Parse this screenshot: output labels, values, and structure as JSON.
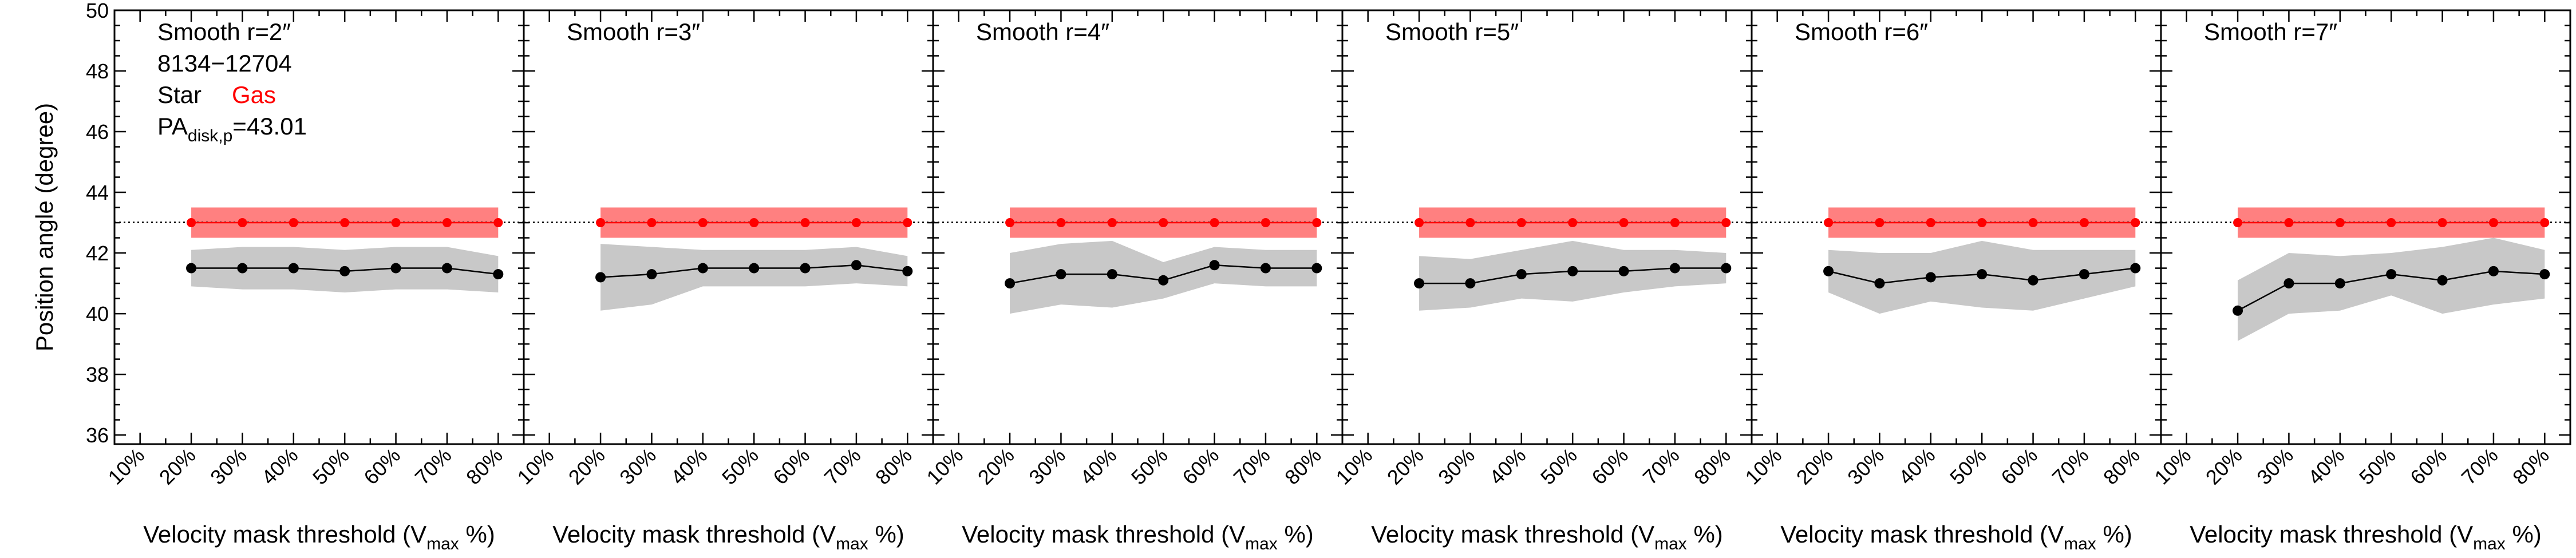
{
  "chart_data": {
    "type": "line",
    "ylabel": "Position angle (degree)",
    "xlabel_prefix": "Velocity mask threshold (V",
    "xlabel_sub": "max",
    "xlabel_suffix": " %)",
    "ylim": [
      35.7,
      50
    ],
    "yticks": [
      36,
      38,
      40,
      42,
      44,
      46,
      48,
      50
    ],
    "x_categories": [
      "10%",
      "20%",
      "30%",
      "40%",
      "50%",
      "60%",
      "70%",
      "80%"
    ],
    "xlim": [
      5,
      85
    ],
    "reference_line": 43.01,
    "colors": {
      "star": "#000000",
      "gas": "#ff0000",
      "gas_band": "#ff8080",
      "star_band": "#c8c8c8"
    },
    "legend": {
      "galaxy_id": "8134−12704",
      "star_label": "Star",
      "gas_label": "Gas",
      "pa_prefix": "PA",
      "pa_sub": "disk,p",
      "pa_value": "=43.01"
    },
    "panels": [
      {
        "title": "Smooth r=2″",
        "x": [
          20,
          30,
          40,
          50,
          60,
          70,
          80
        ],
        "gas": [
          43.0,
          43.0,
          43.0,
          43.0,
          43.0,
          43.0,
          43.0
        ],
        "gas_band": [
          [
            42.5,
            43.5
          ],
          [
            42.5,
            43.5
          ],
          [
            42.5,
            43.5
          ],
          [
            42.5,
            43.5
          ],
          [
            42.5,
            43.5
          ],
          [
            42.5,
            43.5
          ],
          [
            42.5,
            43.5
          ]
        ],
        "star": [
          41.5,
          41.5,
          41.5,
          41.4,
          41.5,
          41.5,
          41.3
        ],
        "star_band": [
          [
            40.9,
            42.1
          ],
          [
            40.8,
            42.2
          ],
          [
            40.8,
            42.2
          ],
          [
            40.7,
            42.1
          ],
          [
            40.8,
            42.2
          ],
          [
            40.8,
            42.2
          ],
          [
            40.7,
            41.9
          ]
        ]
      },
      {
        "title": "Smooth r=3″",
        "x": [
          20,
          30,
          40,
          50,
          60,
          70,
          80
        ],
        "gas": [
          43.0,
          43.0,
          43.0,
          43.0,
          43.0,
          43.0,
          43.0
        ],
        "gas_band": [
          [
            42.5,
            43.5
          ],
          [
            42.5,
            43.5
          ],
          [
            42.5,
            43.5
          ],
          [
            42.5,
            43.5
          ],
          [
            42.5,
            43.5
          ],
          [
            42.5,
            43.5
          ],
          [
            42.5,
            43.5
          ]
        ],
        "star": [
          41.2,
          41.3,
          41.5,
          41.5,
          41.5,
          41.6,
          41.4
        ],
        "star_band": [
          [
            40.1,
            42.3
          ],
          [
            40.3,
            42.2
          ],
          [
            40.9,
            42.1
          ],
          [
            40.9,
            42.1
          ],
          [
            40.9,
            42.1
          ],
          [
            41.0,
            42.2
          ],
          [
            40.9,
            41.9
          ]
        ]
      },
      {
        "title": "Smooth r=4″",
        "x": [
          20,
          30,
          40,
          50,
          60,
          70,
          80
        ],
        "gas": [
          43.0,
          43.0,
          43.0,
          43.0,
          43.0,
          43.0,
          43.0
        ],
        "gas_band": [
          [
            42.5,
            43.5
          ],
          [
            42.5,
            43.5
          ],
          [
            42.5,
            43.5
          ],
          [
            42.5,
            43.5
          ],
          [
            42.5,
            43.5
          ],
          [
            42.5,
            43.5
          ],
          [
            42.5,
            43.5
          ]
        ],
        "star": [
          41.0,
          41.3,
          41.3,
          41.1,
          41.6,
          41.5,
          41.5
        ],
        "star_band": [
          [
            40.0,
            42.0
          ],
          [
            40.3,
            42.3
          ],
          [
            40.2,
            42.4
          ],
          [
            40.5,
            41.7
          ],
          [
            41.0,
            42.2
          ],
          [
            40.9,
            42.1
          ],
          [
            40.9,
            42.1
          ]
        ]
      },
      {
        "title": "Smooth r=5″",
        "x": [
          20,
          30,
          40,
          50,
          60,
          70,
          80
        ],
        "gas": [
          43.0,
          43.0,
          43.0,
          43.0,
          43.0,
          43.0,
          43.0
        ],
        "gas_band": [
          [
            42.5,
            43.5
          ],
          [
            42.5,
            43.5
          ],
          [
            42.5,
            43.5
          ],
          [
            42.5,
            43.5
          ],
          [
            42.5,
            43.5
          ],
          [
            42.5,
            43.5
          ],
          [
            42.5,
            43.5
          ]
        ],
        "star": [
          41.0,
          41.0,
          41.3,
          41.4,
          41.4,
          41.5,
          41.5
        ],
        "star_band": [
          [
            40.1,
            41.9
          ],
          [
            40.2,
            41.8
          ],
          [
            40.5,
            42.1
          ],
          [
            40.4,
            42.4
          ],
          [
            40.7,
            42.1
          ],
          [
            40.9,
            42.1
          ],
          [
            41.0,
            42.0
          ]
        ]
      },
      {
        "title": "Smooth r=6″",
        "x": [
          20,
          30,
          40,
          50,
          60,
          70,
          80
        ],
        "gas": [
          43.0,
          43.0,
          43.0,
          43.0,
          43.0,
          43.0,
          43.0
        ],
        "gas_band": [
          [
            42.5,
            43.5
          ],
          [
            42.5,
            43.5
          ],
          [
            42.5,
            43.5
          ],
          [
            42.5,
            43.5
          ],
          [
            42.5,
            43.5
          ],
          [
            42.5,
            43.5
          ],
          [
            42.5,
            43.5
          ]
        ],
        "star": [
          41.4,
          41.0,
          41.2,
          41.3,
          41.1,
          41.3,
          41.5
        ],
        "star_band": [
          [
            40.7,
            42.1
          ],
          [
            40.0,
            42.0
          ],
          [
            40.4,
            42.0
          ],
          [
            40.2,
            42.4
          ],
          [
            40.1,
            42.1
          ],
          [
            40.5,
            42.1
          ],
          [
            40.9,
            42.1
          ]
        ]
      },
      {
        "title": "Smooth r=7″",
        "x": [
          20,
          30,
          40,
          50,
          60,
          70,
          80
        ],
        "gas": [
          43.0,
          43.0,
          43.0,
          43.0,
          43.0,
          43.0,
          43.0
        ],
        "gas_band": [
          [
            42.5,
            43.5
          ],
          [
            42.5,
            43.5
          ],
          [
            42.5,
            43.5
          ],
          [
            42.5,
            43.5
          ],
          [
            42.5,
            43.5
          ],
          [
            42.5,
            43.5
          ],
          [
            42.5,
            43.5
          ]
        ],
        "star": [
          40.1,
          41.0,
          41.0,
          41.3,
          41.1,
          41.4,
          41.3
        ],
        "star_band": [
          [
            39.1,
            41.1
          ],
          [
            40.0,
            42.0
          ],
          [
            40.1,
            41.9
          ],
          [
            40.6,
            42.0
          ],
          [
            40.0,
            42.2
          ],
          [
            40.3,
            42.5
          ],
          [
            40.5,
            42.1
          ]
        ]
      }
    ]
  }
}
